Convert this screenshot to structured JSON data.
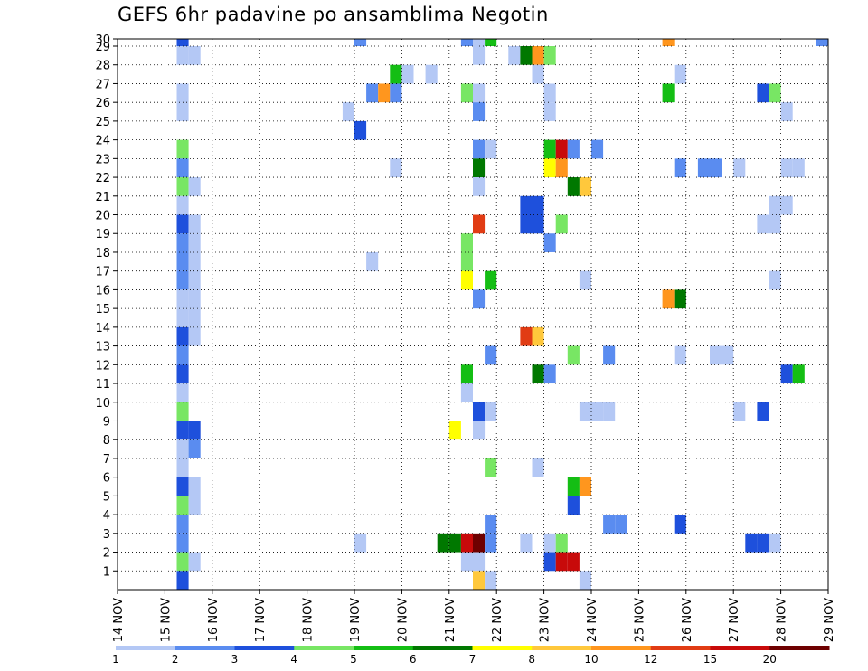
{
  "title": "GEFS 6hr padavine po ansamblima Negotin",
  "chart_data": {
    "type": "heatmap",
    "title": "GEFS 6hr padavine po ansamblima Negotin",
    "x_ticks": [
      "14 NOV",
      "15 NOV",
      "16 NOV",
      "17 NOV",
      "18 NOV",
      "19 NOV",
      "20 NOV",
      "21 NOV",
      "22 NOV",
      "23 NOV",
      "24 NOV",
      "25 NOV",
      "26 NOV",
      "27 NOV",
      "28 NOV",
      "29 NOV"
    ],
    "y_ticks": [
      "1",
      "2",
      "3",
      "4",
      "5",
      "6",
      "7",
      "8",
      "9",
      "10",
      "11",
      "12",
      "13",
      "14",
      "15",
      "16",
      "17",
      "18",
      "19",
      "20",
      "21",
      "22",
      "23",
      "24",
      "25",
      "26",
      "27",
      "28",
      "29",
      "30"
    ],
    "xlim": [
      0,
      60
    ],
    "ylim": [
      0,
      30
    ],
    "grid": true,
    "legend": {
      "position": "bottom",
      "labels": [
        "1",
        "2",
        "3",
        "4",
        "5",
        "6",
        "7",
        "8",
        "10",
        "12",
        "15",
        "20"
      ],
      "colors": [
        "#b4c8f5",
        "#5a8cf0",
        "#1e50dc",
        "#78e664",
        "#14be14",
        "#007800",
        "#ffff00",
        "#ffc83c",
        "#ff961e",
        "#e13c14",
        "#c80a0a",
        "#6e0000"
      ]
    },
    "cells": [
      [
        5,
        29,
        2
      ],
      [
        5,
        28,
        0
      ],
      [
        6,
        28,
        0
      ],
      [
        5,
        26,
        0
      ],
      [
        5,
        25,
        0
      ],
      [
        5,
        23,
        3
      ],
      [
        5,
        22,
        1
      ],
      [
        5,
        21,
        3
      ],
      [
        6,
        21,
        0
      ],
      [
        5,
        20,
        0
      ],
      [
        5,
        19,
        2
      ],
      [
        6,
        19,
        0
      ],
      [
        5,
        18,
        1
      ],
      [
        6,
        18,
        0
      ],
      [
        5,
        17,
        1
      ],
      [
        6,
        17,
        0
      ],
      [
        5,
        16,
        1
      ],
      [
        6,
        16,
        0
      ],
      [
        5,
        15,
        0
      ],
      [
        6,
        15,
        0
      ],
      [
        5,
        14,
        0
      ],
      [
        6,
        14,
        0
      ],
      [
        5,
        13,
        2
      ],
      [
        6,
        13,
        0
      ],
      [
        5,
        12,
        1
      ],
      [
        5,
        11,
        2
      ],
      [
        5,
        10,
        0
      ],
      [
        5,
        9,
        3
      ],
      [
        5,
        8,
        2
      ],
      [
        6,
        8,
        2
      ],
      [
        5,
        7,
        0
      ],
      [
        6,
        7,
        1
      ],
      [
        5,
        6,
        0
      ],
      [
        5,
        5,
        2
      ],
      [
        6,
        5,
        0
      ],
      [
        5,
        4,
        3
      ],
      [
        6,
        4,
        0
      ],
      [
        5,
        3,
        1
      ],
      [
        5,
        2,
        1
      ],
      [
        5,
        1,
        3
      ],
      [
        6,
        1,
        0
      ],
      [
        5,
        0,
        2
      ],
      [
        20,
        29,
        1
      ],
      [
        20,
        2,
        0
      ],
      [
        19,
        25,
        0
      ],
      [
        21,
        26,
        1
      ],
      [
        22,
        26,
        8
      ],
      [
        23,
        26,
        1
      ],
      [
        20,
        24,
        2
      ],
      [
        23,
        27,
        4
      ],
      [
        24,
        27,
        0
      ],
      [
        26,
        27,
        0
      ],
      [
        23,
        22,
        0
      ],
      [
        21,
        17,
        0
      ],
      [
        27,
        2,
        5
      ],
      [
        28,
        2,
        5
      ],
      [
        29,
        2,
        10
      ],
      [
        30,
        2,
        11
      ],
      [
        31,
        2,
        1
      ],
      [
        29,
        1,
        0
      ],
      [
        30,
        1,
        0
      ],
      [
        29,
        29,
        1
      ],
      [
        30,
        29,
        0
      ],
      [
        31,
        29,
        4
      ],
      [
        30,
        28,
        0
      ],
      [
        29,
        26,
        3
      ],
      [
        30,
        26,
        0
      ],
      [
        30,
        25,
        1
      ],
      [
        30,
        23,
        1
      ],
      [
        31,
        23,
        0
      ],
      [
        30,
        22,
        5
      ],
      [
        30,
        21,
        0
      ],
      [
        30,
        19,
        9
      ],
      [
        29,
        18,
        3
      ],
      [
        29,
        17,
        3
      ],
      [
        29,
        16,
        6
      ],
      [
        31,
        16,
        4
      ],
      [
        30,
        15,
        1
      ],
      [
        31,
        12,
        1
      ],
      [
        29,
        11,
        4
      ],
      [
        29,
        10,
        0
      ],
      [
        30,
        9,
        2
      ],
      [
        31,
        9,
        0
      ],
      [
        28,
        8,
        6
      ],
      [
        30,
        8,
        0
      ],
      [
        31,
        6,
        3
      ],
      [
        31,
        3,
        1
      ],
      [
        30,
        0,
        7
      ],
      [
        31,
        0,
        0
      ],
      [
        33,
        28,
        0
      ],
      [
        34,
        28,
        5
      ],
      [
        35,
        28,
        8
      ],
      [
        36,
        28,
        3
      ],
      [
        35,
        27,
        0
      ],
      [
        36,
        26,
        0
      ],
      [
        36,
        25,
        0
      ],
      [
        36,
        23,
        4
      ],
      [
        37,
        23,
        10
      ],
      [
        38,
        23,
        1
      ],
      [
        40,
        23,
        1
      ],
      [
        36,
        22,
        6
      ],
      [
        37,
        22,
        8
      ],
      [
        38,
        21,
        5
      ],
      [
        39,
        21,
        7
      ],
      [
        34,
        20,
        2
      ],
      [
        35,
        20,
        2
      ],
      [
        34,
        19,
        2
      ],
      [
        35,
        19,
        2
      ],
      [
        37,
        19,
        3
      ],
      [
        36,
        18,
        1
      ],
      [
        39,
        16,
        0
      ],
      [
        34,
        13,
        9
      ],
      [
        35,
        13,
        7
      ],
      [
        38,
        12,
        3
      ],
      [
        41,
        12,
        1
      ],
      [
        35,
        11,
        5
      ],
      [
        36,
        11,
        1
      ],
      [
        39,
        9,
        0
      ],
      [
        40,
        9,
        0
      ],
      [
        41,
        9,
        0
      ],
      [
        35,
        6,
        0
      ],
      [
        38,
        5,
        4
      ],
      [
        39,
        5,
        8
      ],
      [
        38,
        4,
        2
      ],
      [
        41,
        3,
        1
      ],
      [
        42,
        3,
        1
      ],
      [
        34,
        2,
        0
      ],
      [
        36,
        2,
        0
      ],
      [
        37,
        2,
        3
      ],
      [
        36,
        1,
        2
      ],
      [
        37,
        1,
        10
      ],
      [
        38,
        1,
        10
      ],
      [
        39,
        0,
        0
      ],
      [
        46,
        29,
        8
      ],
      [
        46,
        26,
        4
      ],
      [
        47,
        27,
        0
      ],
      [
        47,
        22,
        1
      ],
      [
        49,
        22,
        1
      ],
      [
        50,
        22,
        1
      ],
      [
        52,
        22,
        0
      ],
      [
        46,
        15,
        8
      ],
      [
        47,
        15,
        5
      ],
      [
        47,
        12,
        0
      ],
      [
        50,
        12,
        0
      ],
      [
        51,
        12,
        0
      ],
      [
        52,
        9,
        0
      ],
      [
        54,
        9,
        2
      ],
      [
        47,
        3,
        2
      ],
      [
        53,
        2,
        2
      ],
      [
        54,
        2,
        2
      ],
      [
        55,
        2,
        0
      ],
      [
        54,
        26,
        2
      ],
      [
        55,
        26,
        3
      ],
      [
        56,
        25,
        0
      ],
      [
        59,
        29,
        1
      ],
      [
        56,
        22,
        0
      ],
      [
        57,
        22,
        0
      ],
      [
        55,
        20,
        0
      ],
      [
        56,
        20,
        0
      ],
      [
        54,
        19,
        0
      ],
      [
        55,
        19,
        0
      ],
      [
        55,
        16,
        0
      ],
      [
        56,
        11,
        2
      ],
      [
        57,
        11,
        4
      ]
    ]
  }
}
